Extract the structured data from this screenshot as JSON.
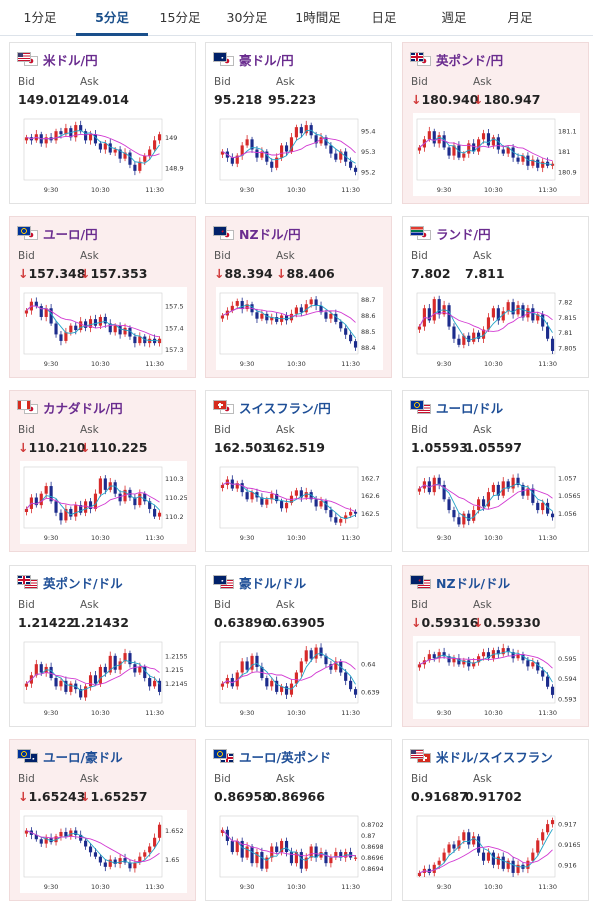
{
  "tabs": [
    {
      "label": "1分足",
      "active": false
    },
    {
      "label": "5分足",
      "active": true
    },
    {
      "label": "15分足",
      "active": false
    },
    {
      "label": "30分足",
      "active": false
    },
    {
      "label": "1時間足",
      "active": false
    },
    {
      "label": "日足",
      "active": false
    },
    {
      "label": "週足",
      "active": false
    },
    {
      "label": "月足",
      "active": false
    }
  ],
  "labels": {
    "bid": "Bid",
    "ask": "Ask"
  },
  "colors": {
    "up": "#d62a2a",
    "down": "#1c2c8c",
    "ma_short": "#22a3c7",
    "ma_long": "#d23ad2",
    "pink_bg": "#fbeeee"
  },
  "pairs": [
    {
      "name": "米ドル/円",
      "flags": [
        "us-flag",
        "jp-flag"
      ],
      "bid": "149.012",
      "ask": "149.014",
      "direction": "",
      "chart_data": {
        "type": "candlestick",
        "x_labels": [
          "9:30",
          "10:30",
          "11:30"
        ],
        "y_labels": [
          "149",
          "148.9"
        ],
        "ylim": [
          148.86,
          149.06
        ],
        "close": [
          149.0,
          148.99,
          149.01,
          148.98,
          149.0,
          148.99,
          149.02,
          149.01,
          149.03,
          149.0,
          149.04,
          149.02,
          148.99,
          149.01,
          148.98,
          148.96,
          148.98,
          148.95,
          148.96,
          148.93,
          148.95,
          148.91,
          148.89,
          148.92,
          148.94,
          148.96,
          148.99,
          149.01
        ]
      }
    },
    {
      "name": "豪ドル/円",
      "flags": [
        "au-flag",
        "jp-flag"
      ],
      "bid": "95.218",
      "ask": "95.223",
      "direction": "",
      "chart_data": {
        "type": "candlestick",
        "x_labels": [
          "9:30",
          "10:30",
          "11:30"
        ],
        "y_labels": [
          "95.4",
          "95.3",
          "95.2"
        ],
        "ylim": [
          95.16,
          95.46
        ],
        "close": [
          95.3,
          95.27,
          95.24,
          95.28,
          95.33,
          95.36,
          95.31,
          95.27,
          95.3,
          95.25,
          95.22,
          95.27,
          95.33,
          95.3,
          95.37,
          95.42,
          95.39,
          95.43,
          95.38,
          95.34,
          95.37,
          95.33,
          95.29,
          95.26,
          95.3,
          95.25,
          95.22,
          95.2
        ]
      }
    },
    {
      "name": "英ポンド/円",
      "flags": [
        "gb-flag",
        "jp-flag"
      ],
      "bid": "180.940",
      "ask": "180.947",
      "direction": "down",
      "chart_data": {
        "type": "candlestick",
        "x_labels": [
          "9:30",
          "10:30",
          "11:30"
        ],
        "y_labels": [
          "181.1",
          "181",
          "180.9"
        ],
        "ylim": [
          180.86,
          181.16
        ],
        "close": [
          181.02,
          181.06,
          181.1,
          181.04,
          181.08,
          181.02,
          180.98,
          181.03,
          180.97,
          180.99,
          181.04,
          181.0,
          181.06,
          181.09,
          181.03,
          181.07,
          181.01,
          180.99,
          181.02,
          180.97,
          180.95,
          180.98,
          180.93,
          180.96,
          180.92,
          180.95,
          180.93,
          180.94
        ]
      }
    },
    {
      "name": "ユーロ/円",
      "flags": [
        "eu-flag",
        "jp-flag"
      ],
      "bid": "157.348",
      "ask": "157.353",
      "direction": "down",
      "chart_data": {
        "type": "candlestick",
        "x_labels": [
          "9:30",
          "10:30",
          "11:30"
        ],
        "y_labels": [
          "157.5",
          "157.4",
          "157.3"
        ],
        "ylim": [
          157.28,
          157.56
        ],
        "close": [
          157.48,
          157.52,
          157.5,
          157.45,
          157.49,
          157.42,
          157.37,
          157.34,
          157.38,
          157.41,
          157.39,
          157.43,
          157.4,
          157.44,
          157.41,
          157.45,
          157.42,
          157.38,
          157.41,
          157.37,
          157.4,
          157.36,
          157.33,
          157.36,
          157.33,
          157.35,
          157.33,
          157.35
        ]
      }
    },
    {
      "name": "NZドル/円",
      "flags": [
        "nz-flag",
        "jp-flag"
      ],
      "bid": "88.394",
      "ask": "88.406",
      "direction": "down",
      "chart_data": {
        "type": "candlestick",
        "x_labels": [
          "9:30",
          "10:30",
          "11:30"
        ],
        "y_labels": [
          "88.7",
          "88.6",
          "88.5",
          "88.4"
        ],
        "ylim": [
          88.36,
          88.74
        ],
        "close": [
          88.6,
          88.63,
          88.66,
          88.69,
          88.64,
          88.67,
          88.62,
          88.58,
          88.61,
          88.57,
          88.59,
          88.56,
          88.6,
          88.57,
          88.61,
          88.65,
          88.62,
          88.67,
          88.7,
          88.66,
          88.62,
          88.58,
          88.61,
          88.56,
          88.52,
          88.48,
          88.44,
          88.4
        ]
      }
    },
    {
      "name": "ランド/円",
      "flags": [
        "za-flag",
        "jp-flag"
      ],
      "bid": "7.802",
      "ask": "7.811",
      "direction": "",
      "chart_data": {
        "type": "candlestick",
        "x_labels": [
          "9:30",
          "10:30",
          "11:30"
        ],
        "y_labels": [
          "7.82",
          "7.815",
          "7.81",
          "7.805"
        ],
        "ylim": [
          7.803,
          7.823
        ],
        "close": [
          7.812,
          7.818,
          7.814,
          7.821,
          7.816,
          7.819,
          7.812,
          7.808,
          7.806,
          7.809,
          7.807,
          7.81,
          7.808,
          7.811,
          7.815,
          7.818,
          7.814,
          7.817,
          7.82,
          7.816,
          7.819,
          7.815,
          7.818,
          7.814,
          7.816,
          7.812,
          7.808,
          7.804
        ]
      }
    },
    {
      "name": "カナダドル/円",
      "flags": [
        "ca-flag",
        "jp-flag"
      ],
      "bid": "110.210",
      "ask": "110.225",
      "direction": "down",
      "chart_data": {
        "type": "candlestick",
        "x_labels": [
          "9:30",
          "10:30",
          "11:30"
        ],
        "y_labels": [
          "110.3",
          "110.25",
          "110.2"
        ],
        "ylim": [
          110.17,
          110.33
        ],
        "close": [
          110.22,
          110.25,
          110.23,
          110.26,
          110.28,
          110.24,
          110.21,
          110.19,
          110.22,
          110.2,
          110.23,
          110.21,
          110.24,
          110.22,
          110.26,
          110.3,
          110.27,
          110.29,
          110.26,
          110.24,
          110.27,
          110.25,
          110.23,
          110.26,
          110.24,
          110.22,
          110.2,
          110.21
        ]
      }
    },
    {
      "name": "スイスフラン/円",
      "flags": [
        "ch-flag",
        "jp-flag"
      ],
      "bid": "162.503",
      "ask": "162.519",
      "direction": "",
      "chart_data": {
        "type": "candlestick",
        "x_labels": [
          "9:30",
          "10:30",
          "11:30"
        ],
        "y_labels": [
          "162.7",
          "162.6",
          "162.5"
        ],
        "ylim": [
          162.42,
          162.76
        ],
        "close": [
          162.66,
          162.69,
          162.64,
          162.67,
          162.62,
          162.58,
          162.62,
          162.59,
          162.55,
          162.58,
          162.61,
          162.57,
          162.53,
          162.56,
          162.6,
          162.63,
          162.59,
          162.62,
          162.58,
          162.54,
          162.57,
          162.52,
          162.48,
          162.45,
          162.47,
          162.49,
          162.51,
          162.5
        ]
      }
    },
    {
      "name": "ユーロ/ドル",
      "flags": [
        "eu-flag",
        "us-flag"
      ],
      "bid": "1.05593",
      "ask": "1.05597",
      "direction": "",
      "chart_data": {
        "type": "candlestick",
        "x_labels": [
          "9:30",
          "10:30",
          "11:30"
        ],
        "y_labels": [
          "1.057",
          "1.0565",
          "1.056"
        ],
        "ylim": [
          1.0556,
          1.0573
        ],
        "close": [
          1.0567,
          1.0569,
          1.0566,
          1.057,
          1.0568,
          1.0564,
          1.0561,
          1.0559,
          1.0557,
          1.056,
          1.0558,
          1.0561,
          1.0564,
          1.0562,
          1.0566,
          1.0568,
          1.0565,
          1.0569,
          1.0567,
          1.057,
          1.0568,
          1.0565,
          1.0567,
          1.0563,
          1.0561,
          1.0563,
          1.056,
          1.0559
        ]
      }
    },
    {
      "name": "英ポンド/ドル",
      "flags": [
        "gb-flag",
        "us-flag"
      ],
      "bid": "1.21422",
      "ask": "1.21432",
      "direction": "",
      "chart_data": {
        "type": "candlestick",
        "x_labels": [
          "9:30",
          "10:30",
          "11:30"
        ],
        "y_labels": [
          "1.2155",
          "1.215",
          "1.2145"
        ],
        "ylim": [
          1.2138,
          1.216
        ],
        "close": [
          1.2145,
          1.2148,
          1.2152,
          1.2149,
          1.2151,
          1.2147,
          1.2144,
          1.2146,
          1.2142,
          1.2145,
          1.2143,
          1.214,
          1.2144,
          1.2148,
          1.2145,
          1.2151,
          1.2149,
          1.2155,
          1.215,
          1.2153,
          1.2156,
          1.2152,
          1.2149,
          1.2151,
          1.2147,
          1.2144,
          1.2146,
          1.2142
        ]
      }
    },
    {
      "name": "豪ドル/ドル",
      "flags": [
        "au-flag",
        "us-flag"
      ],
      "bid": "0.63896",
      "ask": "0.63905",
      "direction": "",
      "chart_data": {
        "type": "candlestick",
        "x_labels": [
          "9:30",
          "10:30",
          "11:30"
        ],
        "y_labels": [
          "0.64",
          "0.639"
        ],
        "ylim": [
          0.6386,
          0.6408
        ],
        "close": [
          0.6393,
          0.6395,
          0.6392,
          0.6397,
          0.6401,
          0.6398,
          0.6403,
          0.6399,
          0.6395,
          0.6392,
          0.6394,
          0.639,
          0.6392,
          0.6389,
          0.6393,
          0.6397,
          0.6401,
          0.6405,
          0.6402,
          0.6406,
          0.6403,
          0.64,
          0.6398,
          0.6401,
          0.6397,
          0.6394,
          0.6391,
          0.6389
        ]
      }
    },
    {
      "name": "NZドル/ドル",
      "flags": [
        "nz-flag",
        "us-flag"
      ],
      "bid": "0.59316",
      "ask": "0.59330",
      "direction": "down",
      "chart_data": {
        "type": "candlestick",
        "x_labels": [
          "9:30",
          "10:30",
          "11:30"
        ],
        "y_labels": [
          "0.595",
          "0.594",
          "0.593"
        ],
        "ylim": [
          0.5928,
          0.5958
        ],
        "close": [
          0.5947,
          0.5949,
          0.5952,
          0.595,
          0.5953,
          0.5951,
          0.5948,
          0.595,
          0.5947,
          0.5949,
          0.5946,
          0.5948,
          0.5951,
          0.5953,
          0.595,
          0.5954,
          0.5952,
          0.5955,
          0.5953,
          0.595,
          0.5952,
          0.5949,
          0.5946,
          0.5948,
          0.5944,
          0.5941,
          0.5936,
          0.5932
        ]
      }
    },
    {
      "name": "ユーロ/豪ドル",
      "flags": [
        "eu-flag",
        "au-flag"
      ],
      "bid": "1.65243",
      "ask": "1.65257",
      "direction": "down",
      "chart_data": {
        "type": "candlestick",
        "x_labels": [
          "9:30",
          "10:30",
          "11:30"
        ],
        "y_labels": [
          "1.652",
          "1.65"
        ],
        "ylim": [
          1.6488,
          1.653
        ],
        "close": [
          1.652,
          1.6517,
          1.6514,
          1.6511,
          1.6515,
          1.6512,
          1.6516,
          1.6519,
          1.6516,
          1.652,
          1.6517,
          1.6513,
          1.6509,
          1.6505,
          1.6502,
          1.6498,
          1.6495,
          1.65,
          1.6497,
          1.6501,
          1.6498,
          1.6494,
          1.6498,
          1.6502,
          1.6505,
          1.6509,
          1.6515,
          1.6524
        ]
      }
    },
    {
      "name": "ユーロ/英ポンド",
      "flags": [
        "eu-flag",
        "gb-flag"
      ],
      "bid": "0.86958",
      "ask": "0.86966",
      "direction": "",
      "chart_data": {
        "type": "candlestick",
        "x_labels": [
          "9:30",
          "10:30",
          "11:30"
        ],
        "y_labels": [
          "0.8702",
          "0.87",
          "0.8698",
          "0.8696",
          "0.8694"
        ],
        "ylim": [
          0.86925,
          0.87035
        ],
        "close": [
          0.8701,
          0.8699,
          0.8697,
          0.8699,
          0.8696,
          0.8698,
          0.8695,
          0.8697,
          0.8694,
          0.8696,
          0.8698,
          0.8697,
          0.8699,
          0.8697,
          0.8695,
          0.8697,
          0.8694,
          0.8696,
          0.8698,
          0.8696,
          0.8697,
          0.8695,
          0.8696,
          0.8697,
          0.8696,
          0.8697,
          0.8696,
          0.8696
        ]
      }
    },
    {
      "name": "米ドル/スイスフラン",
      "flags": [
        "us-flag",
        "ch-flag"
      ],
      "bid": "0.91687",
      "ask": "0.91702",
      "direction": "",
      "chart_data": {
        "type": "candlestick",
        "x_labels": [
          "9:30",
          "10:30",
          "11:30"
        ],
        "y_labels": [
          "0.917",
          "0.9165",
          "0.916"
        ],
        "ylim": [
          0.9157,
          0.9172
        ],
        "close": [
          0.9158,
          0.9159,
          0.9158,
          0.916,
          0.9161,
          0.9163,
          0.9165,
          0.9164,
          0.9166,
          0.9168,
          0.9165,
          0.9167,
          0.9163,
          0.9161,
          0.9163,
          0.916,
          0.9162,
          0.9159,
          0.9161,
          0.9158,
          0.916,
          0.9159,
          0.9161,
          0.9163,
          0.9166,
          0.9168,
          0.917,
          0.9171
        ]
      }
    }
  ]
}
